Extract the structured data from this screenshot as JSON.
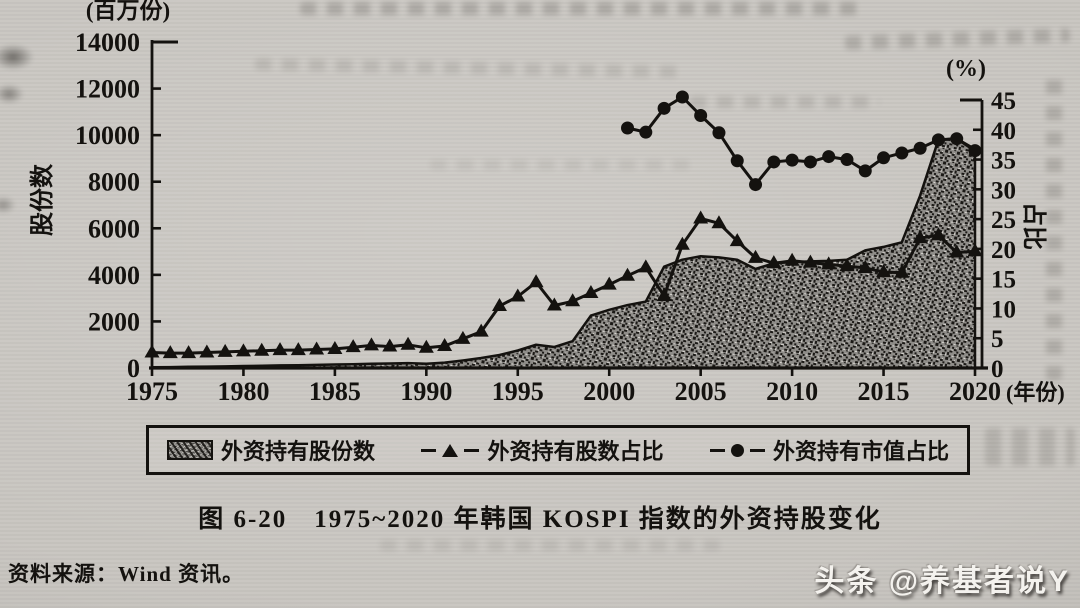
{
  "page": {
    "caption": "图 6-20　1975~2020 年韩国 KOSPI 指数的外资持股变化",
    "source_note": "资料来源：Wind 资讯。",
    "watermark": "头条 @养基者说Y",
    "paper_color": "#c9c6c1",
    "ink_color": "#14120f"
  },
  "chart_data": {
    "type": "combo",
    "figure_label": "图 6-20",
    "title": "1975~2020 年韩国 KOSPI 指数的外资持股变化",
    "grid": false,
    "legend_position": "bottom",
    "legend": [
      "外资持有股份数",
      "外资持有股数占比",
      "外资持有市值占比"
    ],
    "x_axis": {
      "label": "(年份)",
      "range": [
        1975,
        2020
      ],
      "ticks": [
        1975,
        1980,
        1985,
        1990,
        1995,
        2000,
        2005,
        2010,
        2015,
        2020
      ]
    },
    "left_axis": {
      "unit": "(百万份)",
      "title": "股份数",
      "range": [
        0,
        14000
      ],
      "ticks": [
        0,
        2000,
        4000,
        6000,
        8000,
        10000,
        12000,
        14000
      ]
    },
    "right_axis": {
      "unit": "(%)",
      "title": "占比",
      "range": [
        0,
        45
      ],
      "ticks": [
        0,
        5,
        10,
        15,
        20,
        25,
        30,
        35,
        40,
        45
      ]
    },
    "series": [
      {
        "name": "外资持有股份数",
        "type": "area",
        "axis": "left",
        "marker": "none",
        "fill": "speckle",
        "years": [
          1975,
          1976,
          1977,
          1978,
          1979,
          1980,
          1981,
          1982,
          1983,
          1984,
          1985,
          1986,
          1987,
          1988,
          1989,
          1990,
          1991,
          1992,
          1993,
          1994,
          1995,
          1996,
          1997,
          1998,
          1999,
          2000,
          2001,
          2002,
          2003,
          2004,
          2005,
          2006,
          2007,
          2008,
          2009,
          2010,
          2011,
          2012,
          2013,
          2014,
          2015,
          2016,
          2017,
          2018,
          2019,
          2020
        ],
        "values": [
          30,
          40,
          50,
          60,
          70,
          85,
          95,
          110,
          120,
          135,
          150,
          165,
          180,
          195,
          210,
          185,
          230,
          320,
          430,
          560,
          750,
          1000,
          900,
          1150,
          2250,
          2500,
          2700,
          2850,
          4350,
          4650,
          4800,
          4750,
          4650,
          4250,
          4500,
          4550,
          4580,
          4600,
          4650,
          5050,
          5200,
          5400,
          7400,
          9800,
          9850,
          9400
        ]
      },
      {
        "name": "外资持有股数占比",
        "type": "line",
        "axis": "right",
        "marker": "triangle",
        "years": [
          1975,
          1976,
          1977,
          1978,
          1979,
          1980,
          1981,
          1982,
          1983,
          1984,
          1985,
          1986,
          1987,
          1988,
          1989,
          1990,
          1991,
          1992,
          1993,
          1994,
          1995,
          1996,
          1997,
          1998,
          1999,
          2000,
          2001,
          2002,
          2003,
          2004,
          2005,
          2006,
          2007,
          2008,
          2009,
          2010,
          2011,
          2012,
          2013,
          2014,
          2015,
          2016,
          2017,
          2018,
          2019,
          2020
        ],
        "values": [
          2.6,
          2.5,
          2.5,
          2.6,
          2.7,
          2.8,
          2.9,
          3.0,
          3.0,
          3.1,
          3.2,
          3.5,
          3.8,
          3.6,
          3.9,
          3.4,
          3.7,
          4.9,
          6.1,
          10.4,
          12.0,
          14.4,
          10.5,
          11.2,
          12.6,
          14.0,
          15.5,
          16.9,
          12.1,
          20.7,
          25.1,
          24.3,
          21.3,
          18.5,
          17.6,
          18.0,
          17.7,
          17.4,
          17.1,
          16.8,
          16.1,
          16.0,
          21.8,
          22.3,
          19.4,
          19.6
        ]
      },
      {
        "name": "外资持有市值占比",
        "type": "line",
        "axis": "right",
        "marker": "circle",
        "years": [
          2001,
          2002,
          2003,
          2004,
          2005,
          2006,
          2007,
          2008,
          2009,
          2010,
          2011,
          2012,
          2013,
          2014,
          2015,
          2016,
          2017,
          2018,
          2019,
          2020
        ],
        "values": [
          40.3,
          39.6,
          43.6,
          45.5,
          42.4,
          39.5,
          34.8,
          30.8,
          34.6,
          34.9,
          34.6,
          35.5,
          35.0,
          33.1,
          35.3,
          36.1,
          36.9,
          38.3,
          38.5,
          36.5
        ]
      }
    ]
  }
}
